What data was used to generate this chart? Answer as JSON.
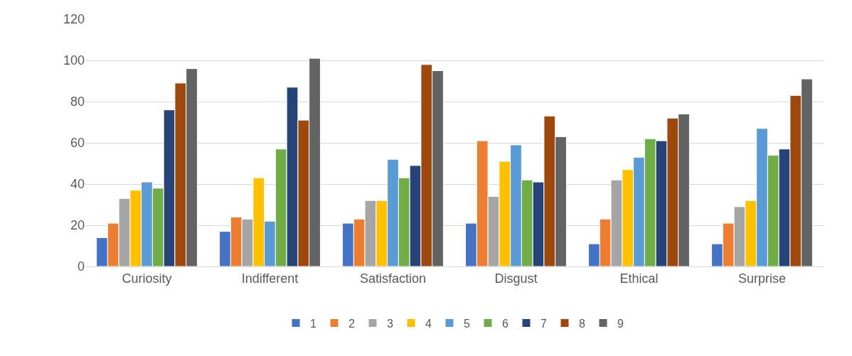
{
  "chart_data": {
    "type": "bar",
    "categories": [
      "Curiosity",
      "Indifferent",
      "Satisfaction",
      "Disgust",
      "Ethical",
      "Surprise"
    ],
    "series": [
      {
        "name": "1",
        "color": "#4472c4",
        "values": [
          14,
          17,
          21,
          21,
          11,
          11
        ]
      },
      {
        "name": "2",
        "color": "#ed7d31",
        "values": [
          21,
          24,
          23,
          61,
          23,
          21
        ]
      },
      {
        "name": "3",
        "color": "#a5a5a5",
        "values": [
          33,
          23,
          32,
          34,
          42,
          29
        ]
      },
      {
        "name": "4",
        "color": "#ffc000",
        "values": [
          37,
          43,
          32,
          51,
          47,
          32
        ]
      },
      {
        "name": "5",
        "color": "#5b9bd5",
        "values": [
          41,
          22,
          52,
          59,
          53,
          67
        ]
      },
      {
        "name": "6",
        "color": "#70ad47",
        "values": [
          38,
          57,
          43,
          42,
          62,
          54
        ]
      },
      {
        "name": "7",
        "color": "#264478",
        "values": [
          76,
          87,
          49,
          41,
          61,
          57
        ]
      },
      {
        "name": "8",
        "color": "#9e480e",
        "values": [
          89,
          71,
          98,
          73,
          72,
          83
        ]
      },
      {
        "name": "9",
        "color": "#636363",
        "values": [
          96,
          101,
          95,
          63,
          74,
          91
        ]
      }
    ],
    "ylim": [
      0,
      120
    ],
    "yticks": [
      0,
      20,
      40,
      60,
      80,
      100,
      120
    ],
    "grid": "y",
    "legend": "bottom"
  }
}
